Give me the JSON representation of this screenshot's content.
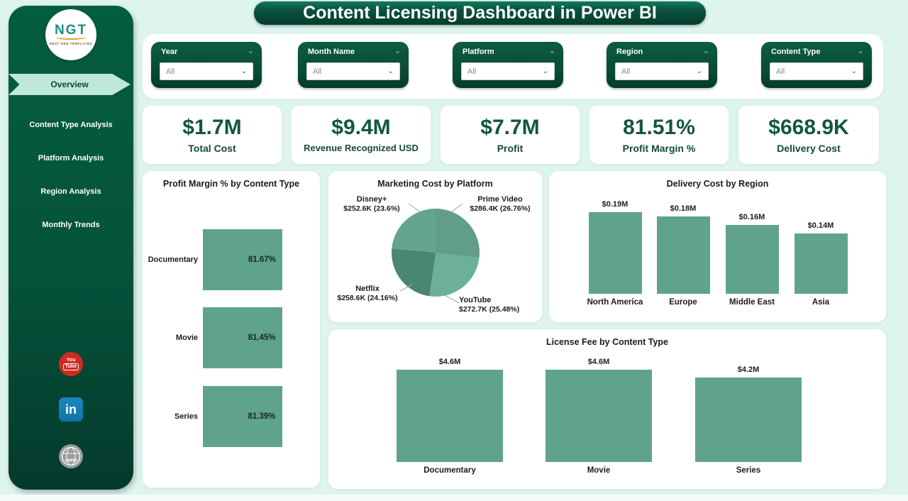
{
  "header": {
    "title": "Content Licensing Dashboard in Power BI"
  },
  "colors": {
    "sidebar_green_top": "#045c40",
    "sidebar_green_bottom": "#05392b",
    "banner_mint": "#bfe7da",
    "mint_background": "#def4ee",
    "kpi_text_green": "#12573f",
    "bar_green": "#5fa38e",
    "youtube_red": "#cf2b20",
    "linkedin_blue": "#0e76a8"
  },
  "sidebar": {
    "logo": {
      "text": "NGT",
      "subtext": "NEXT GEN TEMPLATES"
    },
    "items": [
      {
        "label": "Overview",
        "active": true
      },
      {
        "label": "Content Type Analysis",
        "active": false
      },
      {
        "label": "Platform Analysis",
        "active": false
      },
      {
        "label": "Region Analysis",
        "active": false
      },
      {
        "label": "Monthly Trends",
        "active": false
      }
    ],
    "social": {
      "youtube_line1": "You",
      "youtube_line2": "Tube",
      "linkedin_text": "in",
      "website_text": "www"
    }
  },
  "filters": [
    {
      "label": "Year",
      "value": "All"
    },
    {
      "label": "Month Name",
      "value": "All"
    },
    {
      "label": "Platform",
      "value": "All"
    },
    {
      "label": "Region",
      "value": "All"
    },
    {
      "label": "Content Type",
      "value": "All"
    }
  ],
  "kpis": [
    {
      "value": "$1.7M",
      "label": "Total Cost"
    },
    {
      "value": "$9.4M",
      "label": "Revenue Recognized USD"
    },
    {
      "value": "$7.7M",
      "label": "Profit"
    },
    {
      "value": "81.51%",
      "label": "Profit Margin %"
    },
    {
      "value": "$668.9K",
      "label": "Delivery Cost"
    }
  ],
  "chart_data": [
    {
      "type": "bar",
      "orientation": "horizontal",
      "title": "Profit Margin % by Content Type",
      "categories": [
        "Documentary",
        "Movie",
        "Series"
      ],
      "values": [
        81.67,
        81.45,
        81.39
      ],
      "labels": [
        "81.67%",
        "81.45%",
        "81.39%"
      ],
      "xlim": [
        0,
        85
      ],
      "grid": false
    },
    {
      "type": "pie",
      "title": "Marketing Cost by Platform",
      "slices": [
        {
          "name": "Prime Video",
          "value_k": 286.4,
          "pct": 26.76,
          "value_label": "$286.4K (26.76%)",
          "color": "#619d8a"
        },
        {
          "name": "YouTube",
          "value_k": 272.7,
          "pct": 25.48,
          "value_label": "$272.7K (25.48%)",
          "color": "#6cb09c"
        },
        {
          "name": "Netflix",
          "value_k": 258.6,
          "pct": 24.16,
          "value_label": "$258.6K (24.16%)",
          "color": "#4b8671"
        },
        {
          "name": "Disney+",
          "value_k": 252.6,
          "pct": 23.6,
          "value_label": "$252.6K (23.6%)",
          "color": "#64a58f"
        }
      ],
      "legend": "callout-labels"
    },
    {
      "type": "bar",
      "orientation": "vertical",
      "title": "Delivery Cost by Region",
      "categories": [
        "North America",
        "Europe",
        "Middle East",
        "Asia"
      ],
      "values": [
        0.19,
        0.18,
        0.16,
        0.14
      ],
      "labels": [
        "$0.19M",
        "$0.18M",
        "$0.16M",
        "$0.14M"
      ],
      "ylim": [
        0,
        0.2
      ],
      "grid": false
    },
    {
      "type": "bar",
      "orientation": "vertical",
      "title": "License Fee by Content Type",
      "categories": [
        "Documentary",
        "Movie",
        "Series"
      ],
      "values": [
        4.6,
        4.6,
        4.2
      ],
      "labels": [
        "$4.6M",
        "$4.6M",
        "$4.2M"
      ],
      "ylim": [
        0,
        5
      ],
      "grid": false
    }
  ]
}
